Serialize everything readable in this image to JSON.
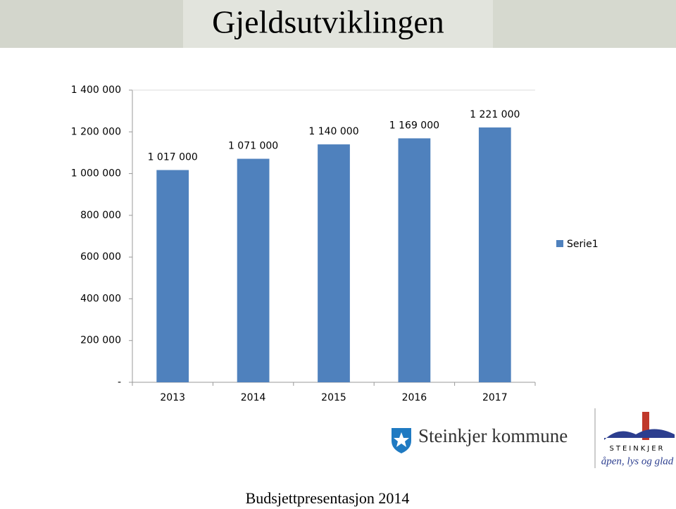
{
  "chart_data": {
    "type": "bar",
    "title": "Gjeldsutviklingen",
    "categories": [
      "2013",
      "2014",
      "2015",
      "2016",
      "2017"
    ],
    "values": [
      1017000,
      1071000,
      1140000,
      1169000,
      1221000
    ],
    "value_labels": [
      "1 017 000",
      "1 071 000",
      "1 140 000",
      "1 169 000",
      "1 221 000"
    ],
    "series_name": "Serie1",
    "color": "#4f81bd",
    "ylim": [
      0,
      1400000
    ],
    "yticks": [
      {
        "value": 0,
        "label": "-"
      },
      {
        "value": 200000,
        "label": "200 000"
      },
      {
        "value": 400000,
        "label": "400 000"
      },
      {
        "value": 600000,
        "label": "600 000"
      },
      {
        "value": 800000,
        "label": "800 000"
      },
      {
        "value": 1000000,
        "label": "1 000 000"
      },
      {
        "value": 1200000,
        "label": "1 200 000"
      },
      {
        "value": 1400000,
        "label": "1 400 000"
      }
    ],
    "grid": false,
    "legend": "right"
  },
  "logo": {
    "name": "Steinkjer kommune",
    "town": "STEINKJER",
    "slogan": "åpen, lys og glad"
  },
  "footer": "Budsjettpresentasjon 2014"
}
